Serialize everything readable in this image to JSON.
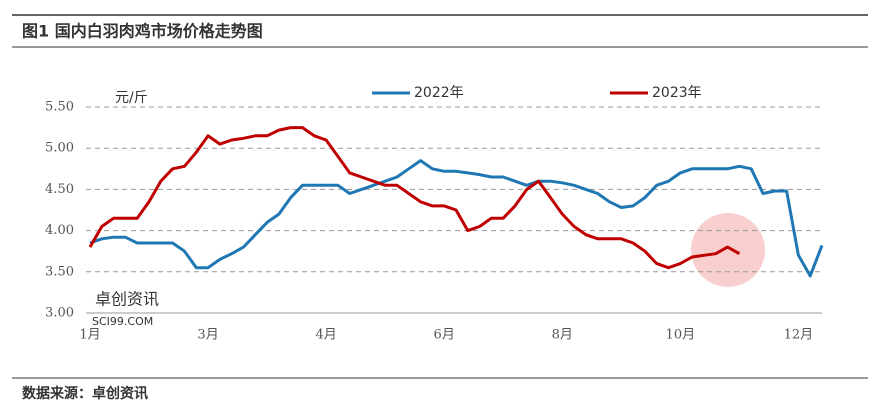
{
  "chart_data": {
    "type": "line",
    "title": "图1 国内白羽肉鸡市场价格走势图",
    "ylabel": "元/斤",
    "source": "数据来源：卓创资讯",
    "watermark": [
      "卓创资讯",
      "SCI99.COM"
    ],
    "categories": [
      "1月",
      null,
      null,
      null,
      null,
      null,
      null,
      null,
      null,
      null,
      "3月",
      null,
      null,
      null,
      null,
      null,
      null,
      null,
      null,
      null,
      "4月",
      null,
      null,
      null,
      null,
      null,
      null,
      null,
      null,
      null,
      "6月",
      null,
      null,
      null,
      null,
      null,
      null,
      null,
      null,
      null,
      "8月",
      null,
      null,
      null,
      null,
      null,
      null,
      null,
      null,
      null,
      "10月",
      null,
      null,
      null,
      null,
      null,
      null,
      null,
      null,
      null,
      "12月",
      null,
      null
    ],
    "ylim": [
      3.0,
      5.5
    ],
    "yticks": [
      {
        "value": 3.0,
        "label": "3.00"
      },
      {
        "value": 3.5,
        "label": "3.50"
      },
      {
        "value": 4.0,
        "label": "4.00"
      },
      {
        "value": 4.5,
        "label": "4.50"
      },
      {
        "value": 5.0,
        "label": "5.00"
      },
      {
        "value": 5.5,
        "label": "5.50"
      }
    ],
    "grid": true,
    "legend": "top",
    "series": [
      {
        "name": "2022年",
        "color": "#1f77b4",
        "values": [
          3.85,
          3.9,
          3.92,
          3.92,
          3.85,
          3.85,
          3.85,
          3.85,
          3.75,
          3.55,
          3.55,
          3.65,
          3.72,
          3.8,
          3.95,
          4.1,
          4.2,
          4.4,
          4.55,
          4.55,
          4.55,
          4.55,
          4.45,
          4.5,
          4.55,
          4.6,
          4.65,
          4.75,
          4.85,
          4.75,
          4.72,
          4.72,
          4.7,
          4.68,
          4.65,
          4.65,
          4.6,
          4.55,
          4.6,
          4.6,
          4.58,
          4.55,
          4.5,
          4.45,
          4.35,
          4.28,
          4.3,
          4.4,
          4.55,
          4.6,
          4.7,
          4.75,
          4.75,
          4.75,
          4.75,
          4.78,
          4.75,
          4.45,
          4.48,
          4.48,
          3.7,
          3.45,
          3.82
        ]
      },
      {
        "name": "2023年",
        "color": "#c00000",
        "values": [
          3.8,
          4.05,
          4.15,
          4.15,
          4.15,
          4.35,
          4.6,
          4.75,
          4.78,
          4.95,
          5.15,
          5.05,
          5.1,
          5.12,
          5.15,
          5.15,
          5.22,
          5.25,
          5.25,
          5.15,
          5.1,
          4.9,
          4.7,
          4.65,
          4.6,
          4.55,
          4.55,
          4.45,
          4.35,
          4.3,
          4.3,
          4.25,
          4.0,
          4.05,
          4.15,
          4.15,
          4.3,
          4.5,
          4.6,
          4.4,
          4.2,
          4.05,
          3.95,
          3.9,
          3.9,
          3.9,
          3.85,
          3.75,
          3.6,
          3.55,
          3.6,
          3.68,
          3.7,
          3.72,
          3.8,
          3.72,
          null,
          null,
          null,
          null,
          null,
          null,
          null
        ]
      }
    ]
  }
}
